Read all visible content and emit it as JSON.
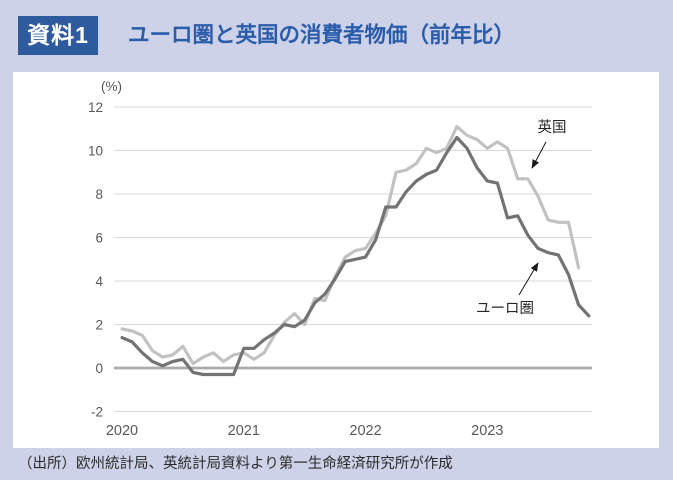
{
  "header": {
    "badge": "資料1",
    "title": "ユーロ圏と英国の消費者物価（前年比）"
  },
  "chart_data": {
    "type": "line",
    "title": "ユーロ圏と英国の消費者物価（前年比）",
    "unit_label": "(%)",
    "ylim": [
      -2,
      12
    ],
    "yticks": [
      12,
      10,
      8,
      6,
      4,
      2,
      0,
      -2
    ],
    "x_tick_labels": [
      "2020",
      "2021",
      "2022",
      "2023"
    ],
    "x_start": "2020-01",
    "x_frequency": "monthly",
    "grid": "horizontal-only",
    "legend_position": "inline-annotations",
    "zero_axis_color": "#ababab",
    "grid_color": "#d9d9d9",
    "series": [
      {
        "name": "英国",
        "color": "#c2c2c2",
        "values": [
          1.8,
          1.7,
          1.5,
          0.8,
          0.5,
          0.6,
          1.0,
          0.2,
          0.5,
          0.7,
          0.3,
          0.6,
          0.7,
          0.4,
          0.7,
          1.5,
          2.1,
          2.5,
          2.0,
          3.2,
          3.1,
          4.2,
          5.1,
          5.4,
          5.5,
          6.2,
          7.0,
          9.0,
          9.1,
          9.4,
          10.1,
          9.9,
          10.1,
          11.1,
          10.7,
          10.5,
          10.1,
          10.4,
          10.1,
          8.7,
          8.7,
          7.9,
          6.8,
          6.7,
          6.7,
          4.6
        ]
      },
      {
        "name": "ユーロ圏",
        "color": "#737373",
        "values": [
          1.4,
          1.2,
          0.7,
          0.3,
          0.1,
          0.3,
          0.4,
          -0.2,
          -0.3,
          -0.3,
          -0.3,
          -0.3,
          0.9,
          0.9,
          1.3,
          1.6,
          2.0,
          1.9,
          2.2,
          3.0,
          3.4,
          4.1,
          4.9,
          5.0,
          5.1,
          5.9,
          7.4,
          7.4,
          8.1,
          8.6,
          8.9,
          9.1,
          9.9,
          10.6,
          10.1,
          9.2,
          8.6,
          8.5,
          6.9,
          7.0,
          6.1,
          5.5,
          5.3,
          5.2,
          4.3,
          2.9,
          2.4
        ]
      }
    ]
  },
  "source": "（出所）欧州統計局、英統計局資料より第一生命経済研究所が作成"
}
